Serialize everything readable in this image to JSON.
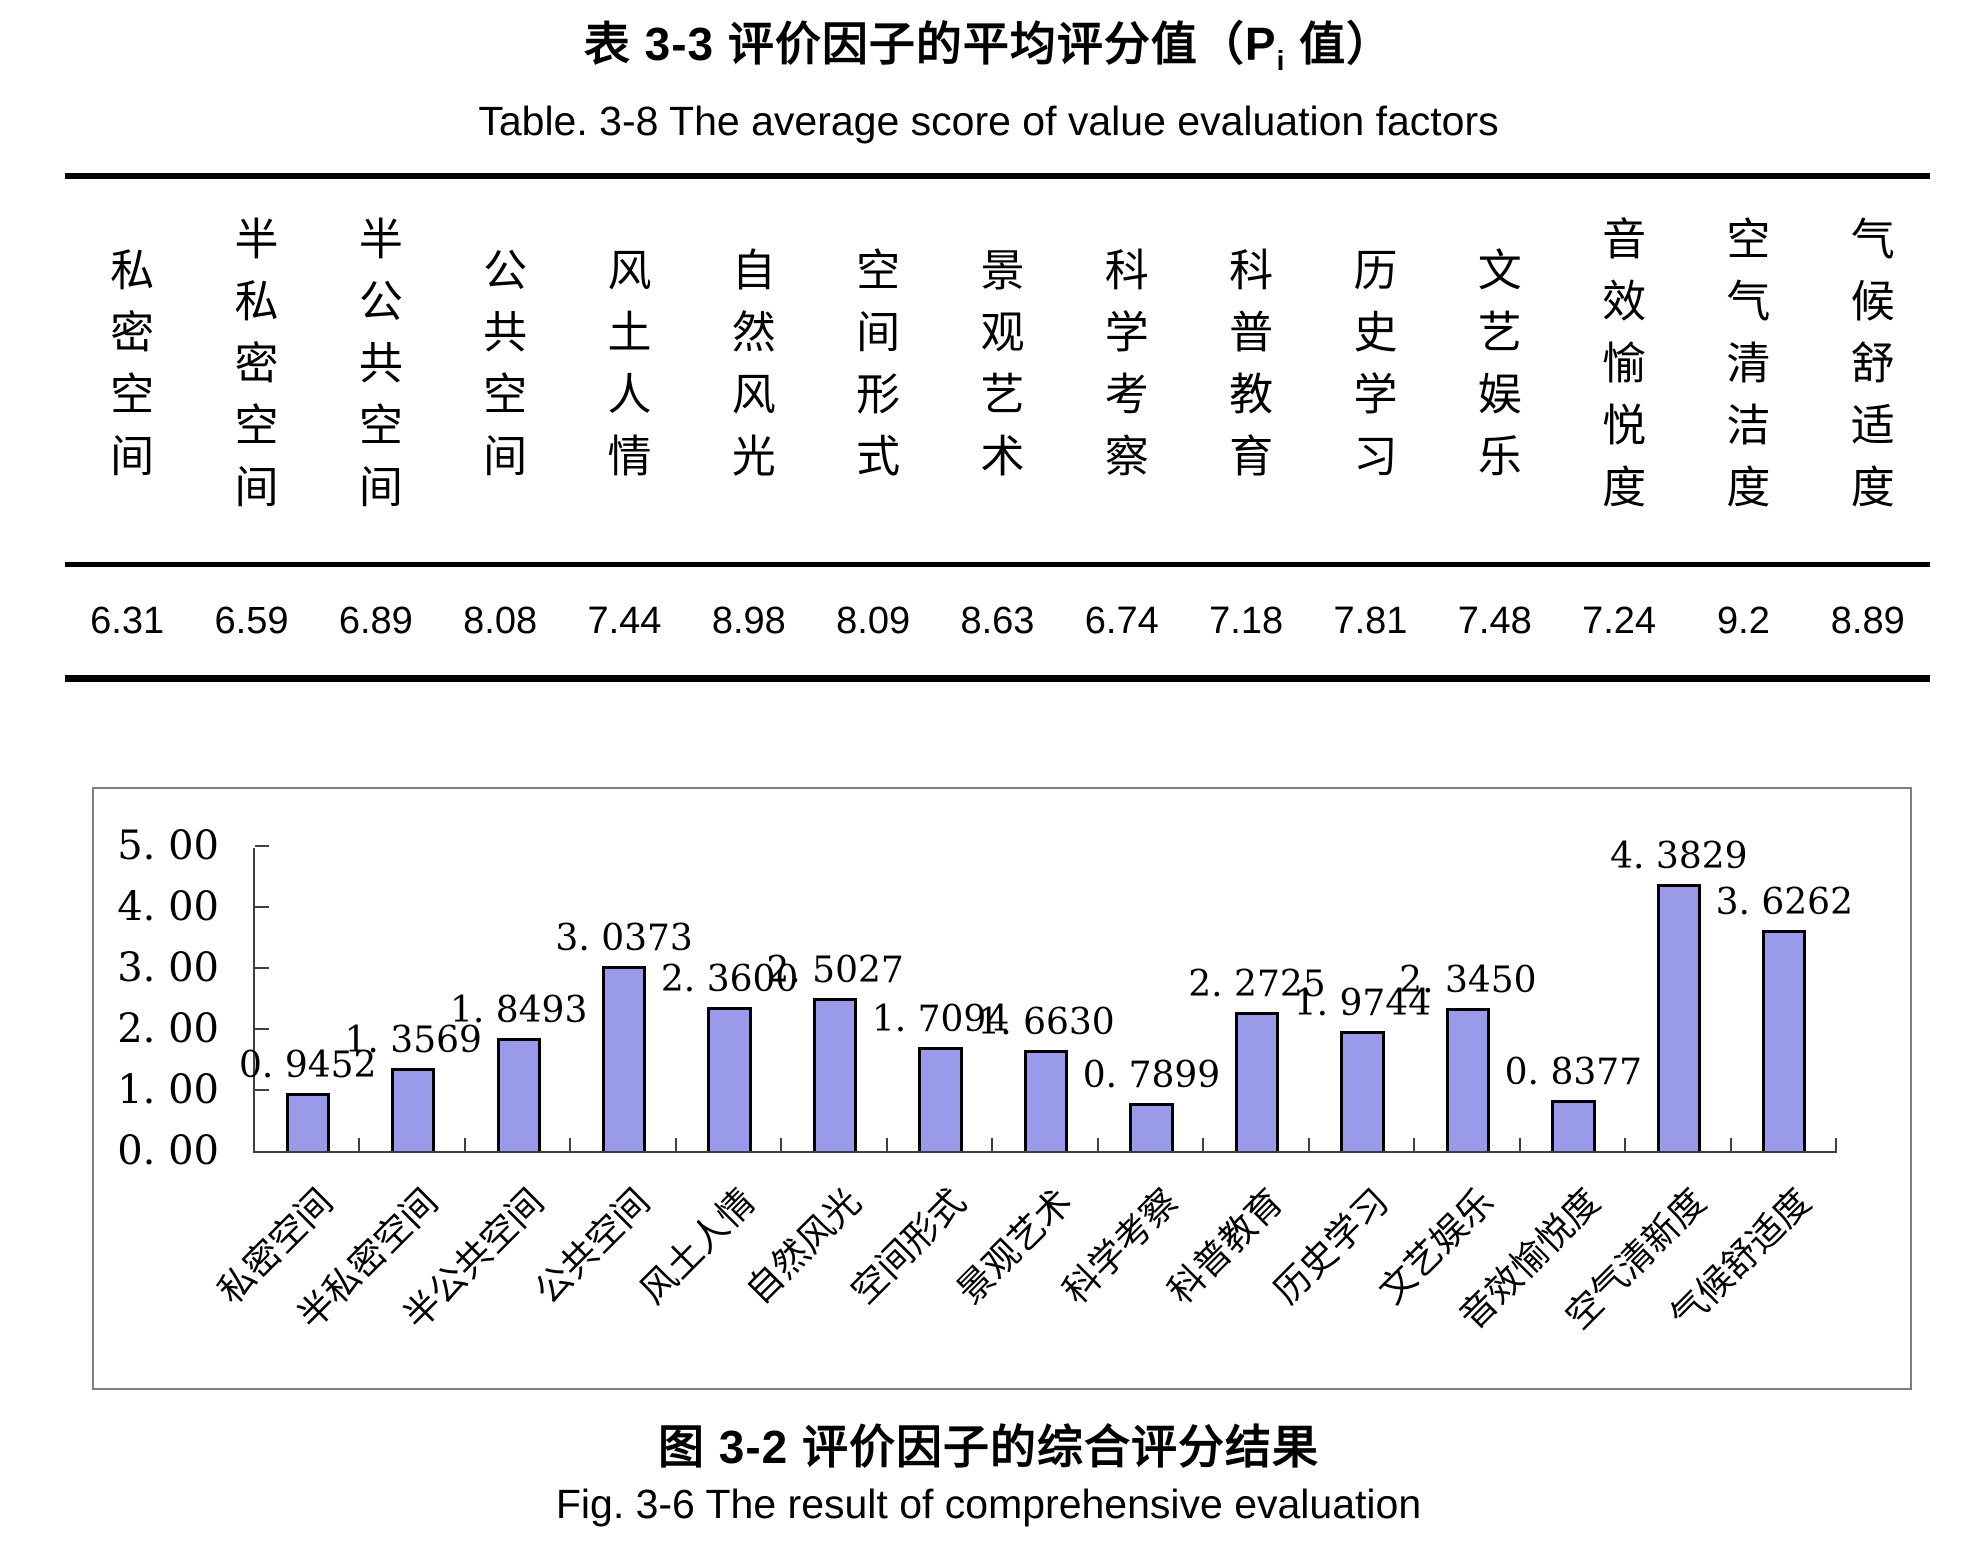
{
  "header": {
    "title_zh_prefix": "表 3-3  评价因子的平均评分值（P",
    "title_zh_sub": "i",
    "title_zh_suffix": " 值）",
    "title_en": "Table. 3-8 The average score of value evaluation factors"
  },
  "figure": {
    "caption_zh": "图 3-2 评价因子的综合评分结果",
    "caption_en": "Fig. 3-6 The result of comprehensive evaluation"
  },
  "colors": {
    "bar_fill": "#9a9aea",
    "bar_border": "#000000",
    "frame_border": "#7f7f7f",
    "axis": "#3f3f3f",
    "table_rule": "#000000"
  },
  "chart_data": [
    {
      "type": "table",
      "title": "表 3-3 评价因子的平均评分值（Pi 值）",
      "columns": [
        "私密空间",
        "半私密空间",
        "半公共空间",
        "公共空间",
        "风土人情",
        "自然风光",
        "空间形式",
        "景观艺术",
        "科学考察",
        "科普教育",
        "历史学习",
        "文艺娱乐",
        "音效愉悦度",
        "空气清洁度",
        "气候舒适度"
      ],
      "values": [
        "6.31",
        "6.59",
        "6.89",
        "8.08",
        "7.44",
        "8.98",
        "8.09",
        "8.63",
        "6.74",
        "7.18",
        "7.81",
        "7.48",
        "7.24",
        "9.2",
        "8.89"
      ]
    },
    {
      "type": "bar",
      "title": "图 3-2 评价因子的综合评分结果",
      "categories": [
        "私密空间",
        "半私密空间",
        "半公共空间",
        "公共空间",
        "风土人情",
        "自然风光",
        "空间形式",
        "景观艺术",
        "科学考察",
        "科普教育",
        "历史学习",
        "文艺娱乐",
        "音效愉悦度",
        "空气清新度",
        "气候舒适度"
      ],
      "values": [
        0.9452,
        1.3569,
        1.8493,
        3.0373,
        2.36,
        2.5027,
        1.7094,
        1.663,
        0.7899,
        2.2725,
        1.9744,
        2.345,
        0.8377,
        4.3829,
        3.6262
      ],
      "value_labels": [
        "0. 9452",
        "1. 3569",
        "1. 8493",
        "3. 0373",
        "2. 3600",
        "2. 5027",
        "1. 7094",
        "1. 6630",
        "0. 7899",
        "2. 2725",
        "1. 9744",
        "2. 3450",
        "0. 8377",
        "4. 3829",
        "3. 6262"
      ],
      "y_tick_labels": [
        "0. 00",
        "1. 00",
        "2. 00",
        "3. 00",
        "4. 00",
        "5. 00"
      ],
      "ylim": [
        0,
        5
      ],
      "grid": false,
      "legend_position": "none",
      "xlabel": "",
      "ylabel": ""
    }
  ]
}
